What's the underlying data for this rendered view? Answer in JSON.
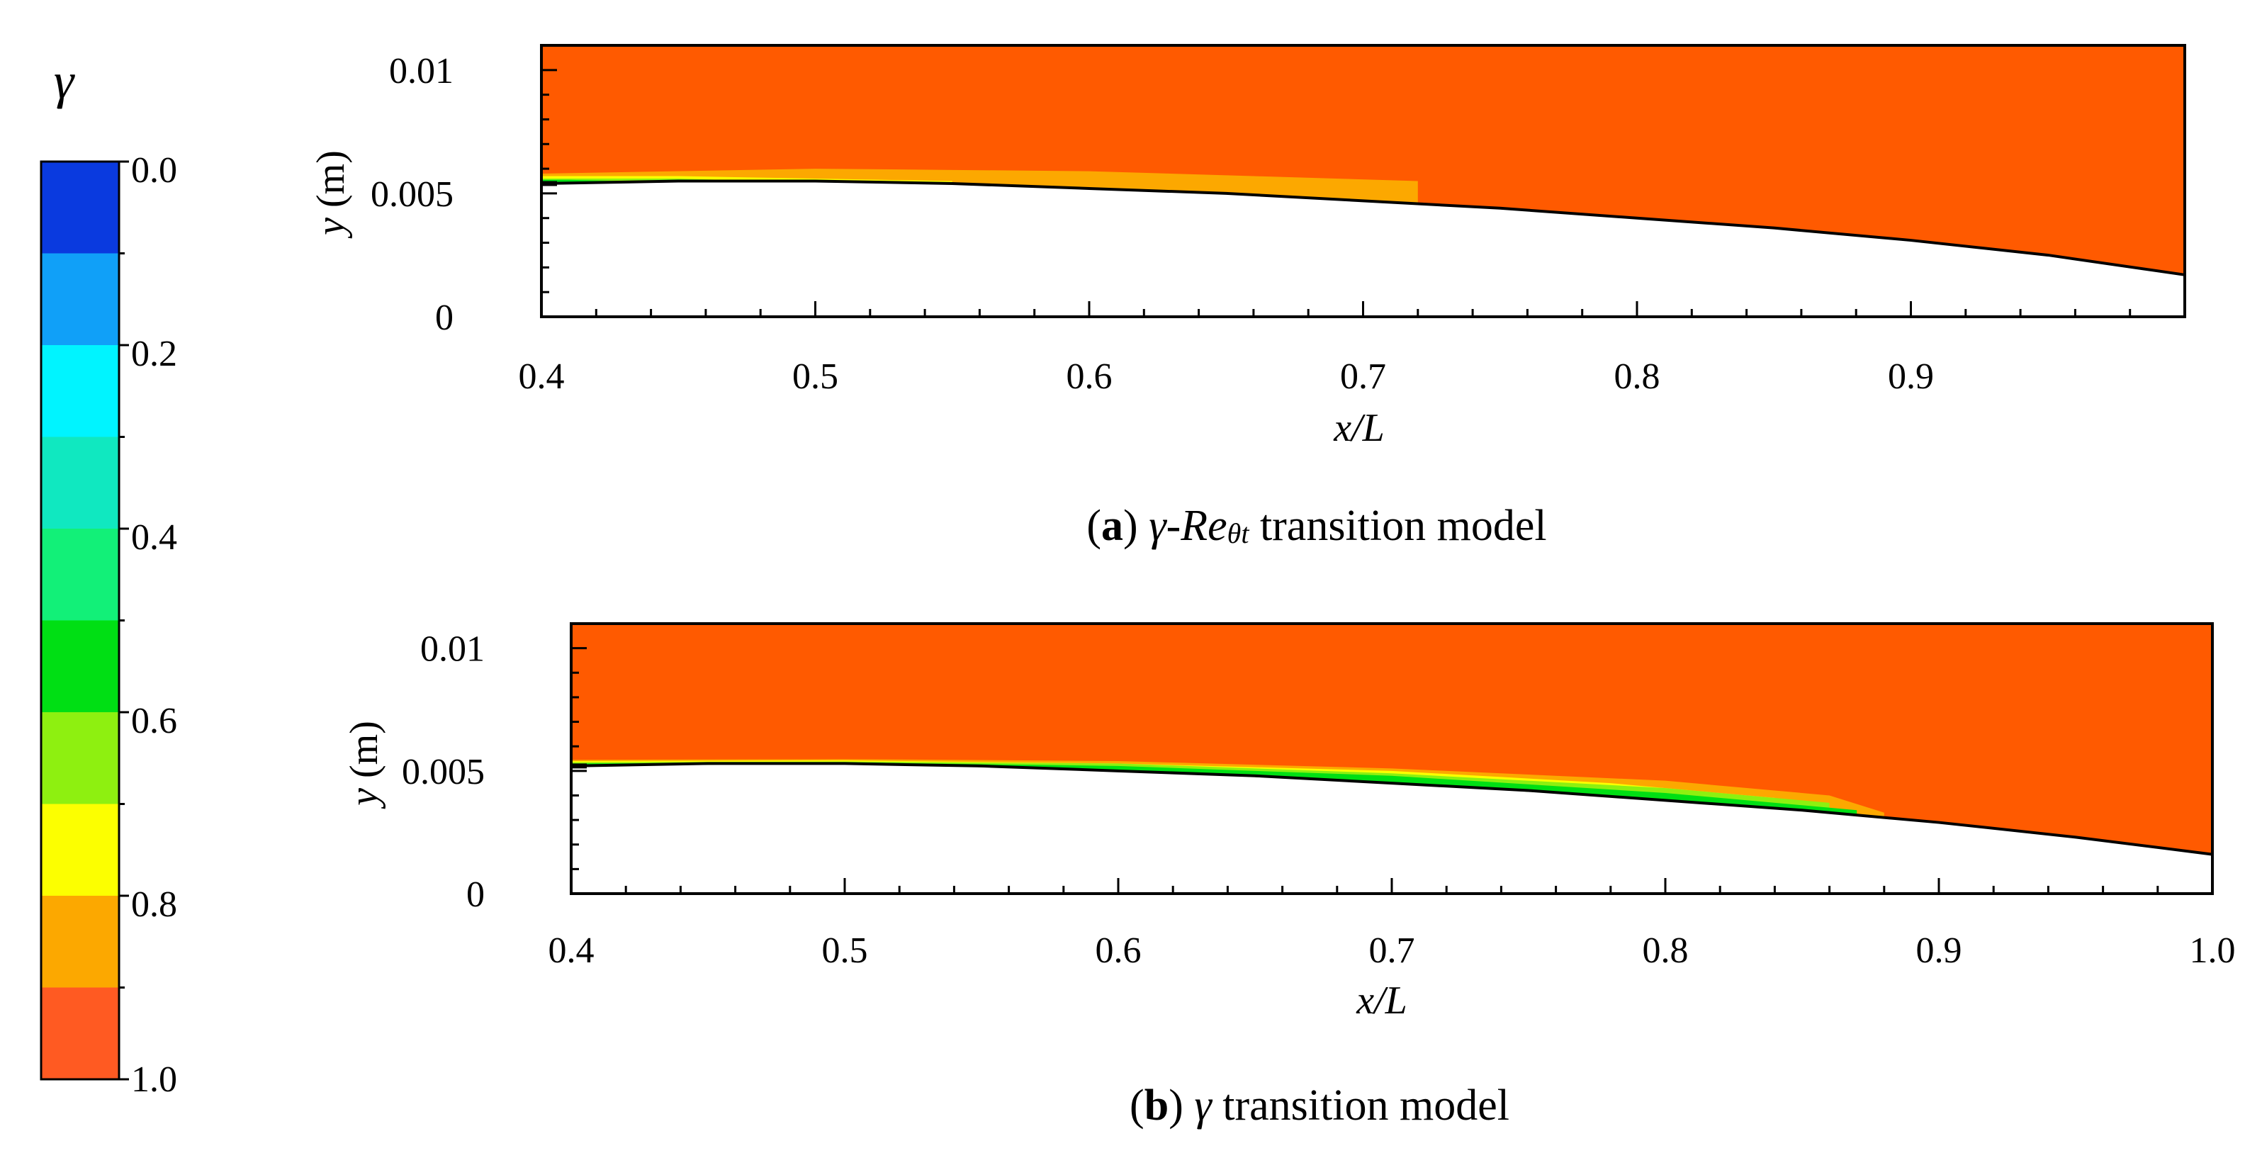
{
  "colorbar": {
    "symbol": "γ",
    "tick_labels": [
      "0.0",
      "0.2",
      "0.4",
      "0.6",
      "0.8",
      "1.0"
    ],
    "levels": [
      {
        "value": 0.05,
        "color": "#0a3adf"
      },
      {
        "value": 0.15,
        "color": "#10a0f8"
      },
      {
        "value": 0.25,
        "color": "#00f4ff"
      },
      {
        "value": 0.35,
        "color": "#10e8c0"
      },
      {
        "value": 0.45,
        "color": "#12f078"
      },
      {
        "value": 0.55,
        "color": "#00df14"
      },
      {
        "value": 0.65,
        "color": "#8ef010"
      },
      {
        "value": 0.75,
        "color": "#fcff00"
      },
      {
        "value": 0.85,
        "color": "#fca800"
      },
      {
        "value": 0.95,
        "color": "#ff5a22"
      }
    ]
  },
  "chart_data": [
    {
      "type": "contour",
      "panel": "a",
      "caption_tag": "a",
      "caption_model": "γ-Re",
      "caption_sub": "θt",
      "caption_rest": " transition model",
      "xlabel_var": "x",
      "xlabel_rest": "/L",
      "ylabel_var": "y",
      "ylabel_unit": " (m)",
      "xlim": [
        0.4,
        1.0
      ],
      "ylim": [
        0,
        0.011
      ],
      "x_ticks": [
        0.4,
        0.5,
        0.6,
        0.7,
        0.8,
        0.9
      ],
      "x_tick_labels": [
        "0.4",
        "0.5",
        "0.6",
        "0.7",
        "0.8",
        "0.9"
      ],
      "y_ticks": [
        0,
        0.005,
        0.01
      ],
      "y_tick_labels": [
        "0",
        "0.005",
        "0.01"
      ],
      "field_color": "#ff5a00",
      "wall": {
        "x": [
          0.4,
          0.45,
          0.5,
          0.55,
          0.6,
          0.65,
          0.7,
          0.75,
          0.8,
          0.85,
          0.9,
          0.95,
          1.0
        ],
        "y": [
          0.0054,
          0.0055,
          0.0055,
          0.0054,
          0.0052,
          0.005,
          0.0047,
          0.0044,
          0.004,
          0.0036,
          0.0031,
          0.0025,
          0.0017
        ]
      },
      "laminar_layers": [
        {
          "color": "#fca800",
          "x": [
            0.4,
            0.5,
            0.6,
            0.66,
            0.72
          ],
          "top": [
            0.0058,
            0.006,
            0.0059,
            0.0057,
            0.0055
          ]
        },
        {
          "color": "#fcff00",
          "x": [
            0.4,
            0.45,
            0.5,
            0.55
          ],
          "top": [
            0.0057,
            0.0057,
            0.0056,
            0.0055
          ]
        },
        {
          "color": "#8ef010",
          "x": [
            0.4,
            0.42,
            0.45,
            0.48
          ],
          "top": [
            0.0056,
            0.0056,
            0.0056,
            0.0055
          ]
        },
        {
          "color": "#00df14",
          "x": [
            0.4,
            0.41,
            0.43
          ],
          "top": [
            0.00555,
            0.00555,
            0.0055
          ]
        }
      ]
    },
    {
      "type": "contour",
      "panel": "b",
      "caption_tag": "b",
      "caption_model": "γ",
      "caption_sub": "",
      "caption_rest": " transition model",
      "xlabel_var": "x",
      "xlabel_rest": "/L",
      "ylabel_var": "y",
      "ylabel_unit": " (m)",
      "xlim": [
        0.4,
        1.0
      ],
      "ylim": [
        0,
        0.011
      ],
      "x_ticks": [
        0.4,
        0.5,
        0.6,
        0.7,
        0.8,
        0.9,
        1.0
      ],
      "x_tick_labels": [
        "0.4",
        "0.5",
        "0.6",
        "0.7",
        "0.8",
        "0.9",
        "1.0"
      ],
      "y_ticks": [
        0,
        0.005,
        0.01
      ],
      "y_tick_labels": [
        "0",
        "0.005",
        "0.01"
      ],
      "field_color": "#ff5a00",
      "wall": {
        "x": [
          0.4,
          0.45,
          0.5,
          0.55,
          0.6,
          0.65,
          0.7,
          0.75,
          0.8,
          0.85,
          0.9,
          0.95,
          1.0
        ],
        "y": [
          0.0052,
          0.0053,
          0.0053,
          0.0052,
          0.005,
          0.0048,
          0.0045,
          0.0042,
          0.0038,
          0.0034,
          0.0029,
          0.0023,
          0.0016
        ]
      },
      "laminar_layers": [
        {
          "color": "#fca800",
          "x": [
            0.4,
            0.5,
            0.6,
            0.7,
            0.8,
            0.86,
            0.88
          ],
          "top": [
            0.00545,
            0.00548,
            0.0054,
            0.0051,
            0.0046,
            0.004,
            0.0033
          ]
        },
        {
          "color": "#fcff00",
          "x": [
            0.4,
            0.5,
            0.6,
            0.7,
            0.78,
            0.84
          ],
          "top": [
            0.0054,
            0.00543,
            0.0053,
            0.005,
            0.0045,
            0.0039
          ]
        },
        {
          "color": "#8ef010",
          "x": [
            0.4,
            0.5,
            0.6,
            0.7,
            0.8,
            0.86
          ],
          "top": [
            0.00535,
            0.00538,
            0.0053,
            0.0049,
            0.0043,
            0.0037
          ]
        },
        {
          "color": "#00df14",
          "x": [
            0.4,
            0.5,
            0.6,
            0.7,
            0.8,
            0.87
          ],
          "top": [
            0.0053,
            0.00535,
            0.0052,
            0.0048,
            0.0041,
            0.0034
          ]
        }
      ]
    }
  ]
}
